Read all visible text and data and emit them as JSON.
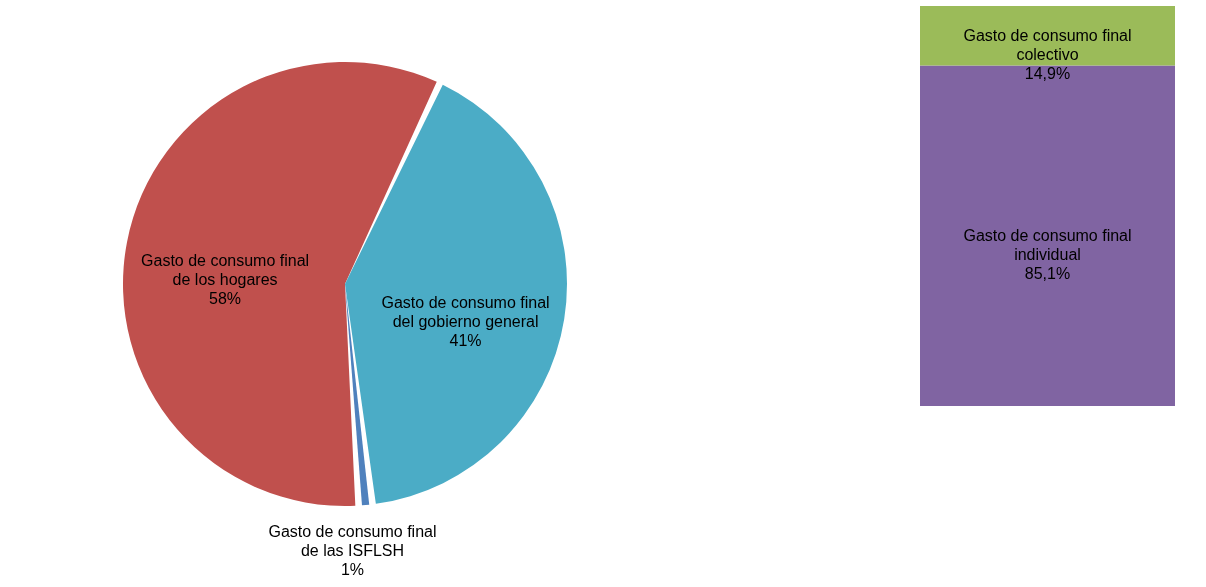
{
  "chart_data": [
    {
      "type": "pie",
      "categories": [
        "Gasto de consumo final de los hogares",
        "Gasto de consumo final del gobierno general",
        "Gasto de consumo final de las ISFLSH"
      ],
      "values": [
        58,
        41,
        1
      ],
      "colors": [
        "#c0504d",
        "#4bacc6",
        "#4f81bd"
      ],
      "value_labels": [
        "58%",
        "41%",
        "1%"
      ]
    },
    {
      "type": "bar",
      "stacked": true,
      "categories": [
        null
      ],
      "ylim": [
        0,
        100
      ],
      "tick_labels": false,
      "series": [
        {
          "name": "Gasto de consumo final individual",
          "color": "#8064a2",
          "values": [
            85.1
          ],
          "value_labels": [
            "85,1%"
          ]
        },
        {
          "name": "Gasto de consumo final colectivo",
          "color": "#9bbb59",
          "values": [
            14.9
          ],
          "value_labels": [
            "14,9%"
          ]
        }
      ]
    }
  ]
}
